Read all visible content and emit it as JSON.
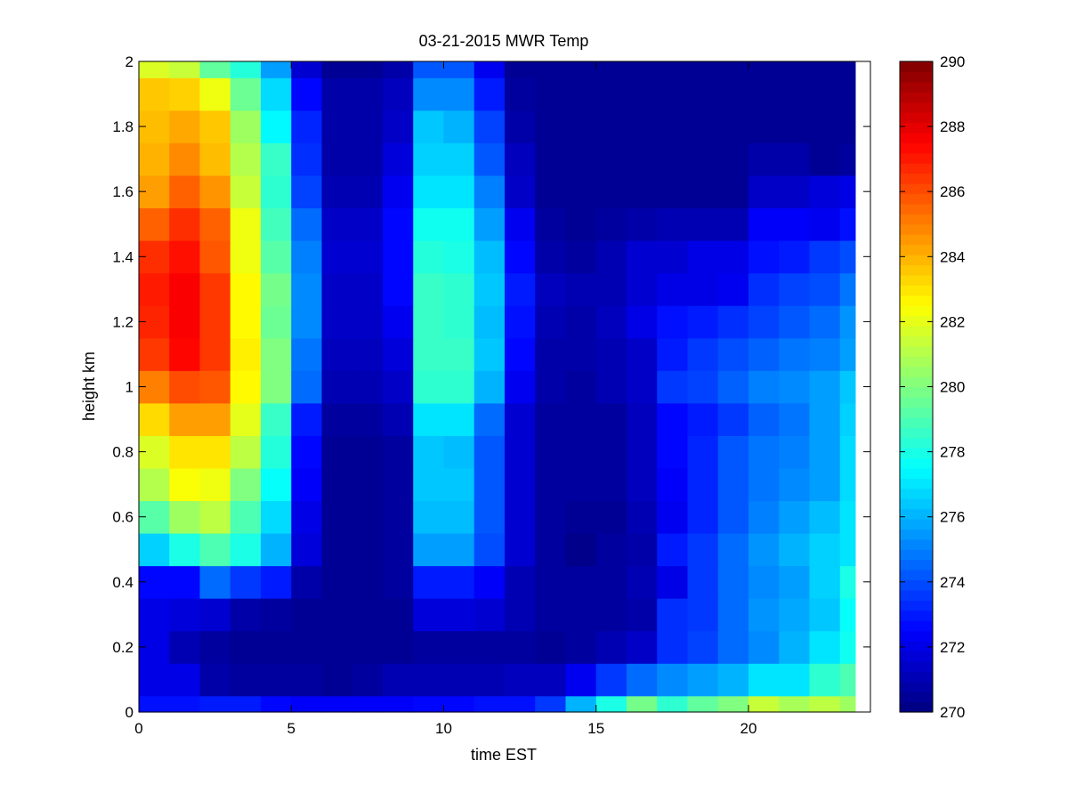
{
  "chart_data": {
    "type": "heatmap",
    "title": "03-21-2015 MWR Temp",
    "xlabel": "time EST",
    "ylabel": "height km",
    "xlim": [
      0,
      24
    ],
    "ylim": [
      0,
      2
    ],
    "xticks": [
      0,
      5,
      10,
      15,
      20
    ],
    "xtick_labels": [
      "0",
      "5",
      "10",
      "15",
      "20"
    ],
    "yticks": [
      0,
      0.2,
      0.4,
      0.6,
      0.8,
      1,
      1.2,
      1.4,
      1.6,
      1.8,
      2
    ],
    "ytick_labels": [
      "0",
      "0.2",
      "0.4",
      "0.6",
      "0.8",
      "1",
      "1.2",
      "1.4",
      "1.6",
      "1.8",
      "2"
    ],
    "colorbar": {
      "min": 270,
      "max": 290,
      "colormap": "jet",
      "ticks": [
        270,
        272,
        274,
        276,
        278,
        280,
        282,
        284,
        286,
        288,
        290
      ],
      "tick_labels": [
        "270",
        "272",
        "274",
        "276",
        "278",
        "280",
        "282",
        "284",
        "286",
        "288",
        "290"
      ]
    },
    "grid": false,
    "time_step_hours": 1,
    "x_edges": [
      0,
      1,
      2,
      3,
      4,
      5,
      6,
      7,
      8,
      9,
      10,
      11,
      12,
      13,
      14,
      15,
      16,
      17,
      18,
      19,
      20,
      21,
      22,
      23,
      23.5
    ],
    "y_edges": [
      0,
      0.05,
      0.15,
      0.25,
      0.35,
      0.45,
      0.55,
      0.65,
      0.75,
      0.85,
      0.95,
      1.05,
      1.15,
      1.25,
      1.35,
      1.45,
      1.55,
      1.65,
      1.75,
      1.85,
      1.95,
      2.0
    ],
    "values_by_height": [
      [
        272.8,
        272.8,
        273.0,
        273.0,
        272.6,
        272.4,
        272.4,
        272.4,
        272.4,
        272.6,
        272.6,
        272.8,
        272.8,
        273.6,
        276.0,
        278.0,
        279.8,
        278.4,
        279.4,
        280.0,
        281.4,
        280.8,
        281.2,
        280.6
      ],
      [
        272.0,
        272.0,
        270.8,
        270.6,
        270.6,
        270.6,
        270.4,
        270.6,
        271.0,
        271.0,
        271.0,
        271.0,
        271.2,
        271.2,
        272.2,
        273.6,
        274.6,
        275.2,
        275.6,
        276.0,
        277.0,
        277.0,
        278.4,
        279.0
      ],
      [
        272.0,
        271.0,
        270.6,
        270.4,
        270.4,
        270.4,
        270.4,
        270.4,
        270.4,
        270.6,
        270.6,
        270.6,
        270.6,
        270.4,
        270.6,
        271.0,
        271.4,
        273.4,
        273.8,
        274.6,
        275.2,
        276.0,
        277.0,
        277.8
      ],
      [
        272.0,
        271.8,
        271.6,
        270.8,
        270.6,
        270.4,
        270.4,
        270.4,
        270.4,
        271.8,
        271.8,
        271.6,
        271.0,
        270.6,
        270.6,
        270.6,
        270.8,
        273.4,
        273.6,
        274.6,
        275.4,
        275.8,
        276.4,
        277.6
      ],
      [
        272.6,
        272.6,
        274.6,
        273.6,
        273.0,
        270.8,
        270.4,
        270.4,
        270.6,
        273.0,
        273.0,
        272.4,
        271.0,
        270.6,
        270.6,
        270.6,
        271.0,
        272.0,
        273.6,
        274.6,
        275.2,
        275.6,
        276.6,
        278.0
      ],
      [
        276.6,
        278.0,
        279.0,
        278.0,
        276.0,
        271.8,
        270.4,
        270.4,
        270.6,
        275.6,
        275.6,
        274.0,
        271.6,
        270.6,
        270.2,
        270.6,
        270.8,
        273.0,
        273.6,
        274.6,
        275.4,
        276.0,
        276.6,
        277.0
      ],
      [
        279.2,
        280.6,
        281.2,
        279.0,
        276.8,
        272.0,
        270.4,
        270.4,
        270.6,
        276.2,
        276.2,
        274.2,
        271.6,
        270.6,
        270.4,
        270.4,
        271.0,
        272.2,
        273.2,
        274.2,
        275.0,
        275.6,
        276.2,
        277.0
      ],
      [
        281.0,
        282.4,
        282.2,
        280.0,
        277.6,
        272.4,
        270.4,
        270.4,
        270.6,
        276.4,
        276.4,
        274.2,
        271.6,
        270.6,
        270.6,
        270.6,
        271.2,
        272.4,
        273.2,
        274.2,
        274.8,
        275.2,
        275.6,
        276.8
      ],
      [
        281.8,
        283.0,
        283.0,
        281.2,
        278.2,
        272.6,
        270.4,
        270.4,
        270.6,
        276.4,
        276.2,
        274.2,
        271.6,
        270.6,
        270.6,
        270.6,
        271.2,
        272.6,
        273.2,
        274.2,
        274.8,
        275.0,
        275.6,
        276.8
      ],
      [
        283.2,
        284.4,
        284.4,
        282.0,
        278.6,
        273.0,
        270.6,
        270.6,
        271.0,
        277.0,
        277.0,
        274.6,
        271.6,
        270.6,
        270.6,
        270.6,
        271.2,
        272.6,
        273.0,
        273.6,
        274.4,
        274.8,
        275.6,
        276.6
      ],
      [
        285.0,
        286.0,
        285.8,
        282.6,
        280.0,
        274.6,
        271.0,
        271.0,
        271.4,
        278.4,
        278.4,
        276.0,
        272.2,
        270.8,
        270.6,
        271.0,
        271.4,
        273.6,
        273.8,
        274.4,
        275.0,
        275.2,
        275.6,
        276.4
      ],
      [
        286.4,
        287.4,
        286.4,
        282.8,
        280.0,
        274.8,
        271.2,
        271.2,
        271.8,
        278.6,
        278.6,
        276.4,
        272.6,
        270.8,
        270.8,
        271.0,
        271.4,
        273.0,
        273.6,
        274.0,
        274.4,
        274.8,
        275.0,
        275.6
      ],
      [
        286.8,
        287.6,
        286.4,
        282.6,
        279.6,
        275.2,
        271.4,
        271.4,
        272.2,
        278.6,
        278.4,
        276.2,
        272.8,
        271.0,
        270.8,
        271.2,
        272.0,
        272.8,
        273.0,
        273.4,
        273.8,
        274.2,
        274.6,
        275.4
      ],
      [
        287.0,
        287.6,
        286.4,
        282.6,
        279.8,
        275.2,
        271.4,
        271.4,
        272.6,
        278.6,
        278.4,
        276.4,
        273.0,
        271.2,
        271.0,
        271.0,
        271.6,
        272.0,
        272.0,
        272.2,
        273.4,
        273.8,
        274.0,
        274.8
      ],
      [
        286.6,
        287.2,
        285.8,
        282.2,
        279.2,
        275.0,
        271.6,
        271.6,
        272.6,
        278.2,
        278.0,
        276.2,
        272.6,
        270.8,
        270.6,
        271.0,
        271.6,
        271.6,
        272.0,
        272.0,
        272.8,
        273.0,
        273.6,
        274.0
      ],
      [
        285.6,
        286.6,
        285.6,
        282.2,
        278.8,
        274.6,
        271.4,
        271.4,
        272.6,
        277.8,
        277.8,
        275.6,
        272.2,
        270.6,
        270.4,
        270.6,
        270.8,
        271.0,
        271.0,
        271.0,
        272.4,
        272.4,
        272.2,
        272.8
      ],
      [
        284.4,
        285.6,
        284.6,
        281.4,
        278.4,
        273.8,
        271.0,
        271.0,
        272.2,
        277.0,
        277.0,
        275.0,
        271.4,
        270.4,
        270.4,
        270.4,
        270.4,
        270.4,
        270.4,
        270.4,
        271.4,
        271.4,
        271.8,
        272.0
      ],
      [
        284.0,
        284.8,
        283.8,
        281.0,
        278.6,
        273.4,
        270.8,
        270.8,
        271.8,
        276.6,
        276.6,
        274.2,
        271.2,
        270.4,
        270.4,
        270.4,
        270.4,
        270.4,
        270.4,
        270.4,
        270.8,
        270.8,
        270.4,
        270.6
      ],
      [
        283.8,
        284.2,
        283.6,
        280.6,
        277.4,
        273.2,
        270.8,
        270.8,
        271.4,
        276.4,
        276.0,
        273.8,
        270.8,
        270.4,
        270.4,
        270.4,
        270.4,
        270.4,
        270.4,
        270.4,
        270.4,
        270.4,
        270.4,
        270.4
      ],
      [
        283.6,
        283.4,
        282.2,
        279.6,
        276.8,
        272.6,
        270.8,
        270.8,
        271.2,
        275.2,
        275.2,
        273.0,
        270.6,
        270.4,
        270.4,
        270.4,
        270.4,
        270.4,
        270.4,
        270.4,
        270.4,
        270.4,
        270.4,
        270.4
      ],
      [
        281.8,
        281.4,
        279.4,
        278.2,
        275.6,
        271.6,
        270.4,
        270.4,
        270.8,
        274.2,
        274.2,
        272.2,
        270.4,
        270.4,
        270.4,
        270.4,
        270.4,
        270.4,
        270.4,
        270.4,
        270.4,
        270.4,
        270.4,
        270.4
      ]
    ]
  }
}
